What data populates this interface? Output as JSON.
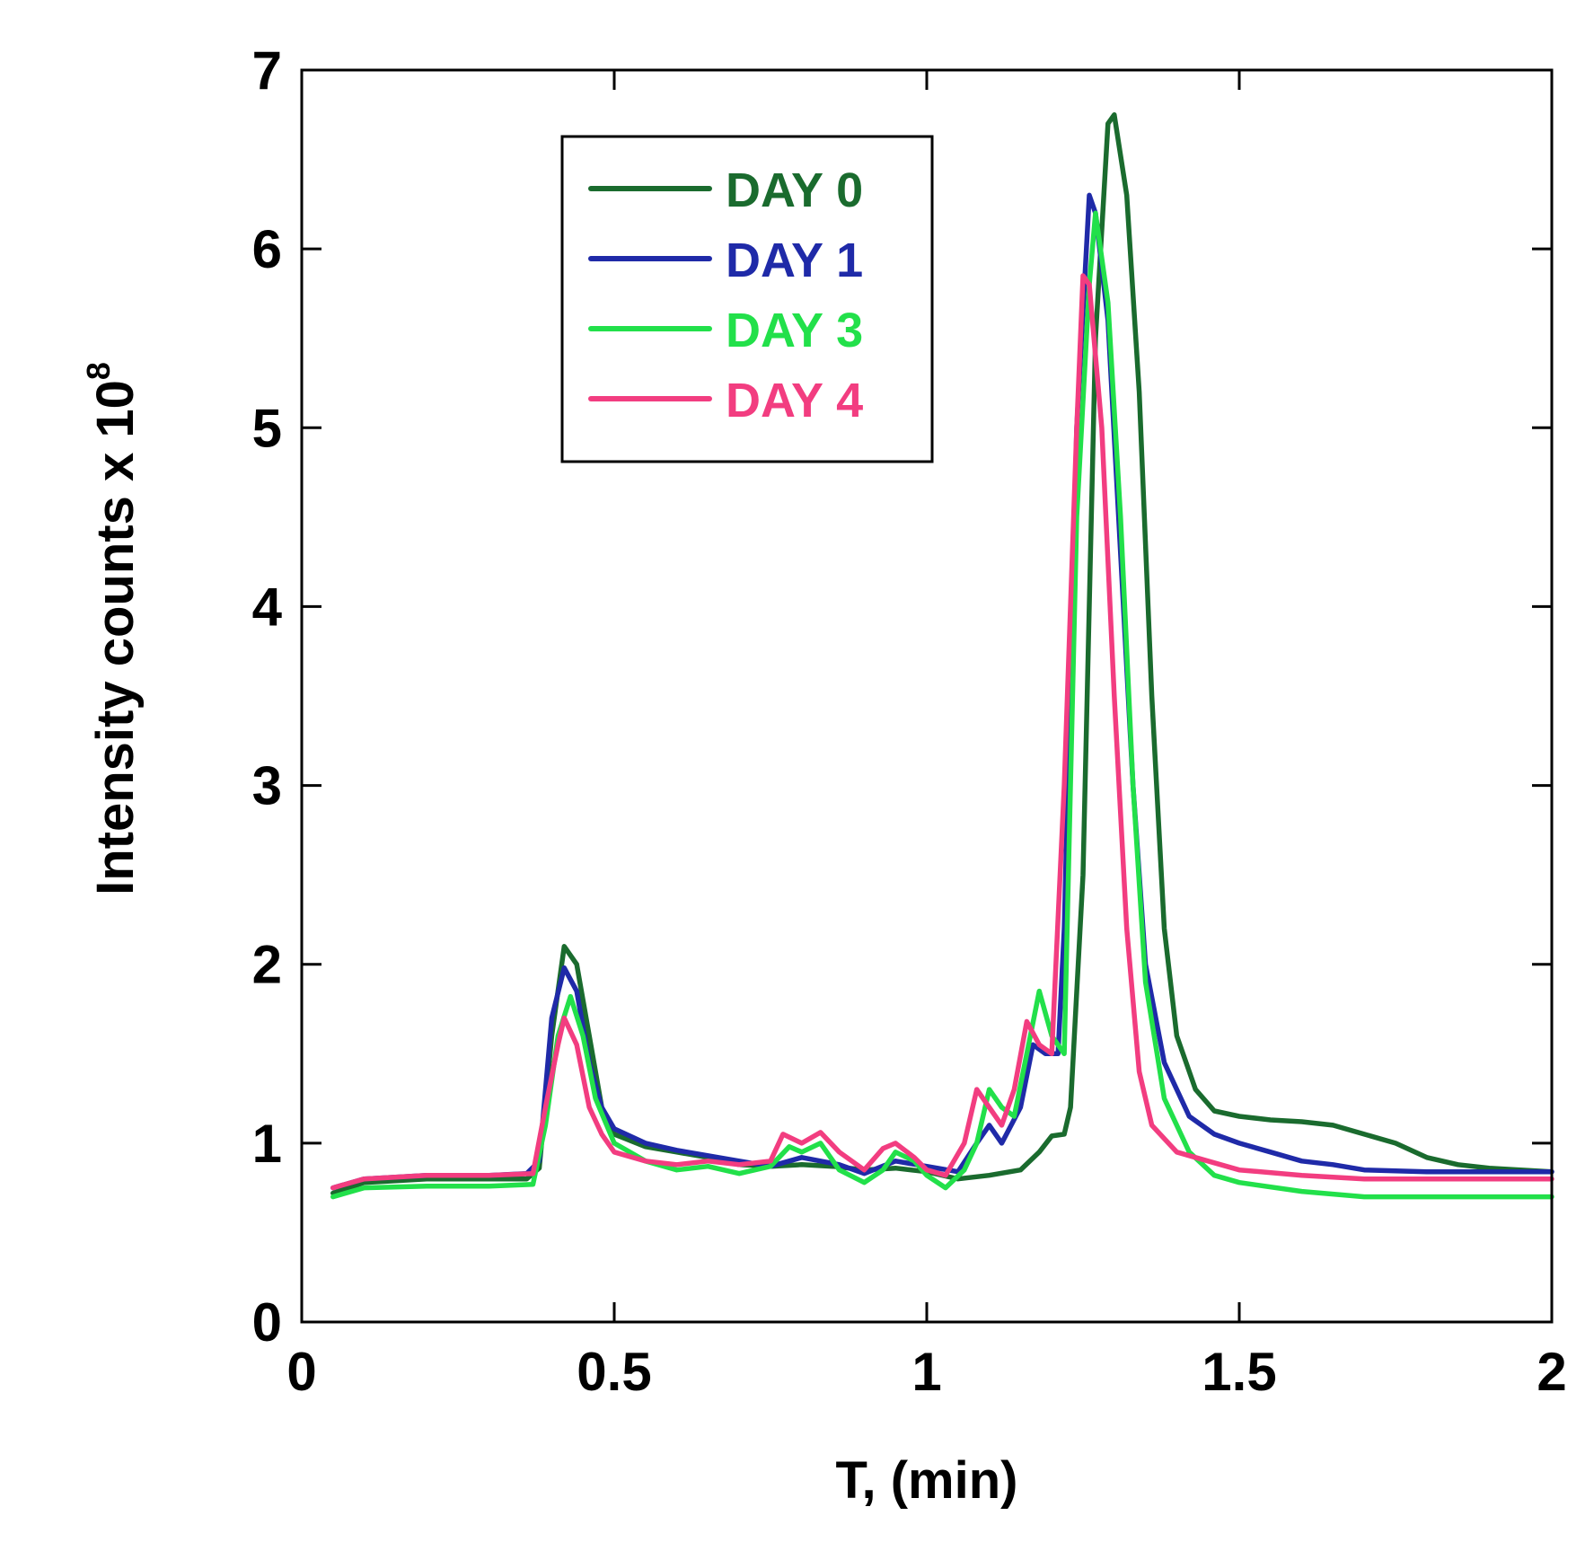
{
  "chart_data": {
    "type": "line",
    "title": "",
    "xlabel": "T, (min)",
    "ylabel": "Intensity counts x 10",
    "ylabel_exponent": "8",
    "xlim": [
      0,
      2
    ],
    "ylim": [
      0,
      7
    ],
    "xticks": [
      0,
      0.5,
      1,
      1.5,
      2
    ],
    "xtick_labels": [
      "0",
      "0.5",
      "1",
      "1.5",
      "2"
    ],
    "yticks": [
      0,
      1,
      2,
      3,
      4,
      5,
      6,
      7
    ],
    "ytick_labels": [
      "0",
      "1",
      "2",
      "3",
      "4",
      "5",
      "6",
      "7"
    ],
    "grid": false,
    "legend_position": "top-left",
    "series": [
      {
        "name": "DAY 0",
        "color": "#1a6b2e",
        "points": [
          [
            0.05,
            0.72
          ],
          [
            0.1,
            0.78
          ],
          [
            0.2,
            0.8
          ],
          [
            0.3,
            0.8
          ],
          [
            0.36,
            0.8
          ],
          [
            0.38,
            0.86
          ],
          [
            0.4,
            1.6
          ],
          [
            0.42,
            2.1
          ],
          [
            0.44,
            2.0
          ],
          [
            0.46,
            1.6
          ],
          [
            0.48,
            1.2
          ],
          [
            0.5,
            1.05
          ],
          [
            0.55,
            0.98
          ],
          [
            0.6,
            0.95
          ],
          [
            0.65,
            0.92
          ],
          [
            0.7,
            0.88
          ],
          [
            0.75,
            0.87
          ],
          [
            0.8,
            0.88
          ],
          [
            0.85,
            0.87
          ],
          [
            0.9,
            0.85
          ],
          [
            0.95,
            0.86
          ],
          [
            1.0,
            0.84
          ],
          [
            1.05,
            0.8
          ],
          [
            1.1,
            0.82
          ],
          [
            1.15,
            0.85
          ],
          [
            1.18,
            0.95
          ],
          [
            1.2,
            1.04
          ],
          [
            1.22,
            1.05
          ],
          [
            1.23,
            1.2
          ],
          [
            1.25,
            2.5
          ],
          [
            1.27,
            5.5
          ],
          [
            1.29,
            6.7
          ],
          [
            1.3,
            6.75
          ],
          [
            1.32,
            6.3
          ],
          [
            1.34,
            5.2
          ],
          [
            1.36,
            3.5
          ],
          [
            1.38,
            2.2
          ],
          [
            1.4,
            1.6
          ],
          [
            1.43,
            1.3
          ],
          [
            1.46,
            1.18
          ],
          [
            1.5,
            1.15
          ],
          [
            1.55,
            1.13
          ],
          [
            1.6,
            1.12
          ],
          [
            1.65,
            1.1
          ],
          [
            1.7,
            1.05
          ],
          [
            1.75,
            1.0
          ],
          [
            1.8,
            0.92
          ],
          [
            1.85,
            0.88
          ],
          [
            1.9,
            0.86
          ],
          [
            1.95,
            0.85
          ],
          [
            2.0,
            0.84
          ]
        ]
      },
      {
        "name": "DAY 1",
        "color": "#1f2aa8",
        "points": [
          [
            0.05,
            0.75
          ],
          [
            0.1,
            0.8
          ],
          [
            0.2,
            0.82
          ],
          [
            0.3,
            0.82
          ],
          [
            0.36,
            0.83
          ],
          [
            0.38,
            0.9
          ],
          [
            0.4,
            1.7
          ],
          [
            0.42,
            1.98
          ],
          [
            0.44,
            1.85
          ],
          [
            0.46,
            1.45
          ],
          [
            0.48,
            1.2
          ],
          [
            0.5,
            1.08
          ],
          [
            0.55,
            1.0
          ],
          [
            0.6,
            0.96
          ],
          [
            0.65,
            0.93
          ],
          [
            0.7,
            0.9
          ],
          [
            0.75,
            0.87
          ],
          [
            0.8,
            0.92
          ],
          [
            0.83,
            0.9
          ],
          [
            0.86,
            0.88
          ],
          [
            0.9,
            0.83
          ],
          [
            0.95,
            0.9
          ],
          [
            1.0,
            0.87
          ],
          [
            1.05,
            0.84
          ],
          [
            1.08,
            1.0
          ],
          [
            1.1,
            1.1
          ],
          [
            1.12,
            1.0
          ],
          [
            1.15,
            1.2
          ],
          [
            1.17,
            1.55
          ],
          [
            1.19,
            1.5
          ],
          [
            1.21,
            1.5
          ],
          [
            1.22,
            2.2
          ],
          [
            1.24,
            5.0
          ],
          [
            1.26,
            6.3
          ],
          [
            1.27,
            6.2
          ],
          [
            1.29,
            5.6
          ],
          [
            1.31,
            4.3
          ],
          [
            1.33,
            3.0
          ],
          [
            1.35,
            2.0
          ],
          [
            1.38,
            1.45
          ],
          [
            1.42,
            1.15
          ],
          [
            1.46,
            1.05
          ],
          [
            1.5,
            1.0
          ],
          [
            1.55,
            0.95
          ],
          [
            1.6,
            0.9
          ],
          [
            1.65,
            0.88
          ],
          [
            1.7,
            0.85
          ],
          [
            1.8,
            0.84
          ],
          [
            1.9,
            0.84
          ],
          [
            2.0,
            0.84
          ]
        ]
      },
      {
        "name": "DAY 3",
        "color": "#22e04a",
        "points": [
          [
            0.05,
            0.7
          ],
          [
            0.1,
            0.75
          ],
          [
            0.2,
            0.76
          ],
          [
            0.3,
            0.76
          ],
          [
            0.37,
            0.77
          ],
          [
            0.39,
            1.1
          ],
          [
            0.41,
            1.6
          ],
          [
            0.43,
            1.82
          ],
          [
            0.45,
            1.6
          ],
          [
            0.47,
            1.25
          ],
          [
            0.5,
            1.0
          ],
          [
            0.55,
            0.9
          ],
          [
            0.6,
            0.85
          ],
          [
            0.65,
            0.87
          ],
          [
            0.7,
            0.83
          ],
          [
            0.75,
            0.87
          ],
          [
            0.78,
            0.98
          ],
          [
            0.8,
            0.95
          ],
          [
            0.83,
            1.0
          ],
          [
            0.86,
            0.85
          ],
          [
            0.9,
            0.78
          ],
          [
            0.93,
            0.85
          ],
          [
            0.95,
            0.95
          ],
          [
            0.98,
            0.9
          ],
          [
            1.0,
            0.82
          ],
          [
            1.03,
            0.75
          ],
          [
            1.06,
            0.85
          ],
          [
            1.08,
            1.0
          ],
          [
            1.1,
            1.3
          ],
          [
            1.12,
            1.2
          ],
          [
            1.14,
            1.15
          ],
          [
            1.16,
            1.5
          ],
          [
            1.18,
            1.85
          ],
          [
            1.2,
            1.6
          ],
          [
            1.22,
            1.5
          ],
          [
            1.24,
            4.5
          ],
          [
            1.26,
            5.8
          ],
          [
            1.27,
            6.2
          ],
          [
            1.29,
            5.7
          ],
          [
            1.31,
            4.5
          ],
          [
            1.33,
            3.0
          ],
          [
            1.35,
            1.9
          ],
          [
            1.38,
            1.25
          ],
          [
            1.42,
            0.95
          ],
          [
            1.46,
            0.82
          ],
          [
            1.5,
            0.78
          ],
          [
            1.6,
            0.73
          ],
          [
            1.7,
            0.7
          ],
          [
            1.8,
            0.7
          ],
          [
            1.9,
            0.7
          ],
          [
            2.0,
            0.7
          ]
        ]
      },
      {
        "name": "DAY 4",
        "color": "#f23d80",
        "points": [
          [
            0.05,
            0.75
          ],
          [
            0.1,
            0.8
          ],
          [
            0.2,
            0.82
          ],
          [
            0.3,
            0.82
          ],
          [
            0.37,
            0.83
          ],
          [
            0.39,
            1.2
          ],
          [
            0.41,
            1.55
          ],
          [
            0.42,
            1.7
          ],
          [
            0.44,
            1.55
          ],
          [
            0.46,
            1.2
          ],
          [
            0.48,
            1.05
          ],
          [
            0.5,
            0.95
          ],
          [
            0.55,
            0.9
          ],
          [
            0.6,
            0.88
          ],
          [
            0.65,
            0.9
          ],
          [
            0.7,
            0.88
          ],
          [
            0.75,
            0.9
          ],
          [
            0.77,
            1.05
          ],
          [
            0.8,
            1.0
          ],
          [
            0.83,
            1.06
          ],
          [
            0.86,
            0.95
          ],
          [
            0.9,
            0.85
          ],
          [
            0.93,
            0.97
          ],
          [
            0.95,
            1.0
          ],
          [
            0.98,
            0.92
          ],
          [
            1.0,
            0.85
          ],
          [
            1.03,
            0.82
          ],
          [
            1.06,
            1.0
          ],
          [
            1.08,
            1.3
          ],
          [
            1.1,
            1.2
          ],
          [
            1.12,
            1.1
          ],
          [
            1.14,
            1.3
          ],
          [
            1.16,
            1.68
          ],
          [
            1.18,
            1.55
          ],
          [
            1.2,
            1.5
          ],
          [
            1.22,
            3.0
          ],
          [
            1.24,
            5.0
          ],
          [
            1.25,
            5.85
          ],
          [
            1.26,
            5.8
          ],
          [
            1.28,
            5.0
          ],
          [
            1.3,
            3.5
          ],
          [
            1.32,
            2.2
          ],
          [
            1.34,
            1.4
          ],
          [
            1.36,
            1.1
          ],
          [
            1.4,
            0.95
          ],
          [
            1.45,
            0.9
          ],
          [
            1.5,
            0.85
          ],
          [
            1.6,
            0.82
          ],
          [
            1.7,
            0.8
          ],
          [
            1.8,
            0.8
          ],
          [
            1.9,
            0.8
          ],
          [
            2.0,
            0.8
          ]
        ]
      }
    ]
  }
}
